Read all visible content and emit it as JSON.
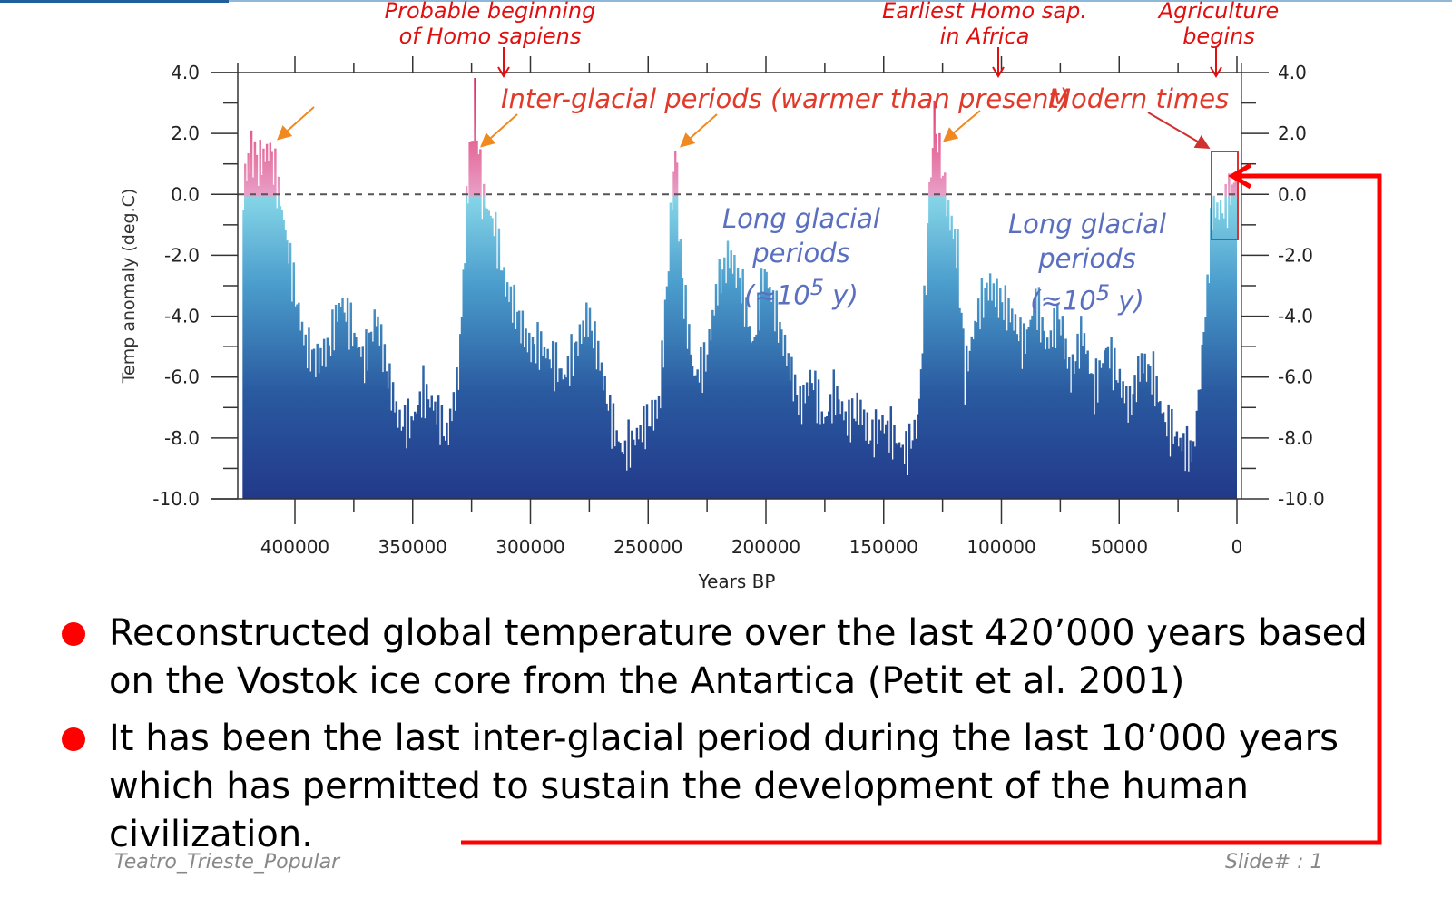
{
  "slide": {
    "footer_left": "Teatro_Trieste_Popular",
    "footer_right": "Slide# : 1",
    "bullets": [
      "Reconstructed global temperature over the last 420’000 years based on the Vostok ice core from the Antartica (Petit et al. 2001)",
      "It has been the last inter-glacial period during the last 10’000 years which has permitted to sustain the development of the human civilization."
    ]
  },
  "annotations": {
    "homo_sapiens": "Probable beginning of Homo sapiens",
    "earliest": "Earliest Homo sap. in Africa",
    "agriculture": "Agriculture begins",
    "interglacial": "Inter-glacial periods (warmer than present)",
    "modern": "Modern times",
    "glacial_1": "Long glacial periods",
    "glacial_1b": "(≈10",
    "glacial_exp": "5",
    "glacial_1c": " y)",
    "glacial_2": "Long glacial periods"
  },
  "colors": {
    "warm": "#e0609a",
    "cold_top": "#86d6e8",
    "cold_bottom": "#22398a",
    "accent": "#ff0000"
  },
  "chart_data": {
    "type": "area",
    "xlabel": "Years BP",
    "ylabel": "Temp anomaly (deg.C)",
    "xlim": [
      424000,
      0
    ],
    "ylim": [
      -10,
      4
    ],
    "x_ticks": [
      400000,
      350000,
      300000,
      250000,
      200000,
      150000,
      100000,
      50000,
      0
    ],
    "y_ticks": [
      "4.0",
      "2.0",
      "0.0",
      "-2.0",
      "-4.0",
      "-6.0",
      "-8.0",
      "-10.0"
    ],
    "reference_line": 0,
    "x": [
      0,
      5000,
      10000,
      12000,
      15000,
      18000,
      20000,
      25000,
      30000,
      35000,
      40000,
      45000,
      50000,
      55000,
      60000,
      65000,
      70000,
      75000,
      80000,
      85000,
      90000,
      95000,
      100000,
      105000,
      110000,
      115000,
      118000,
      122000,
      125000,
      128000,
      130000,
      133000,
      135000,
      140000,
      145000,
      150000,
      155000,
      160000,
      165000,
      170000,
      175000,
      180000,
      185000,
      190000,
      195000,
      200000,
      205000,
      210000,
      215000,
      220000,
      225000,
      230000,
      235000,
      238000,
      240000,
      243000,
      245000,
      250000,
      255000,
      260000,
      265000,
      270000,
      275000,
      280000,
      285000,
      290000,
      295000,
      300000,
      305000,
      310000,
      315000,
      320000,
      323000,
      326000,
      330000,
      335000,
      340000,
      345000,
      350000,
      355000,
      360000,
      365000,
      370000,
      375000,
      380000,
      385000,
      390000,
      395000,
      400000,
      405000,
      410000,
      415000,
      418000,
      422000
    ],
    "y": [
      0.5,
      -0.5,
      -0.5,
      -3,
      -6,
      -8.5,
      -8.5,
      -8,
      -7.5,
      -6,
      -5.5,
      -7,
      -6,
      -5,
      -6.5,
      -4.5,
      -6,
      -4,
      -5,
      -3.5,
      -5,
      -4,
      -3.5,
      -3,
      -4,
      -6,
      -2,
      -0.5,
      1,
      2.5,
      0,
      -5,
      -7.5,
      -8.5,
      -8,
      -7.5,
      -8,
      -7,
      -7.5,
      -6.5,
      -7.5,
      -6,
      -7,
      -5.5,
      -4,
      -2.5,
      -5,
      -3,
      -2,
      -3,
      -5.5,
      -6,
      -3,
      1.5,
      -1,
      -5,
      -7,
      -7.5,
      -8,
      -8.5,
      -7.5,
      -5.5,
      -4,
      -5,
      -6,
      -5.5,
      -5,
      -5,
      -4,
      -3,
      -1,
      0,
      3,
      0.5,
      -6,
      -8,
      -7,
      -6.5,
      -7.5,
      -7.5,
      -6,
      -4,
      -5.5,
      -4.5,
      -3.5,
      -5,
      -5.5,
      -5,
      -3,
      -0.5,
      1.5,
      1,
      1.5,
      0
    ]
  }
}
